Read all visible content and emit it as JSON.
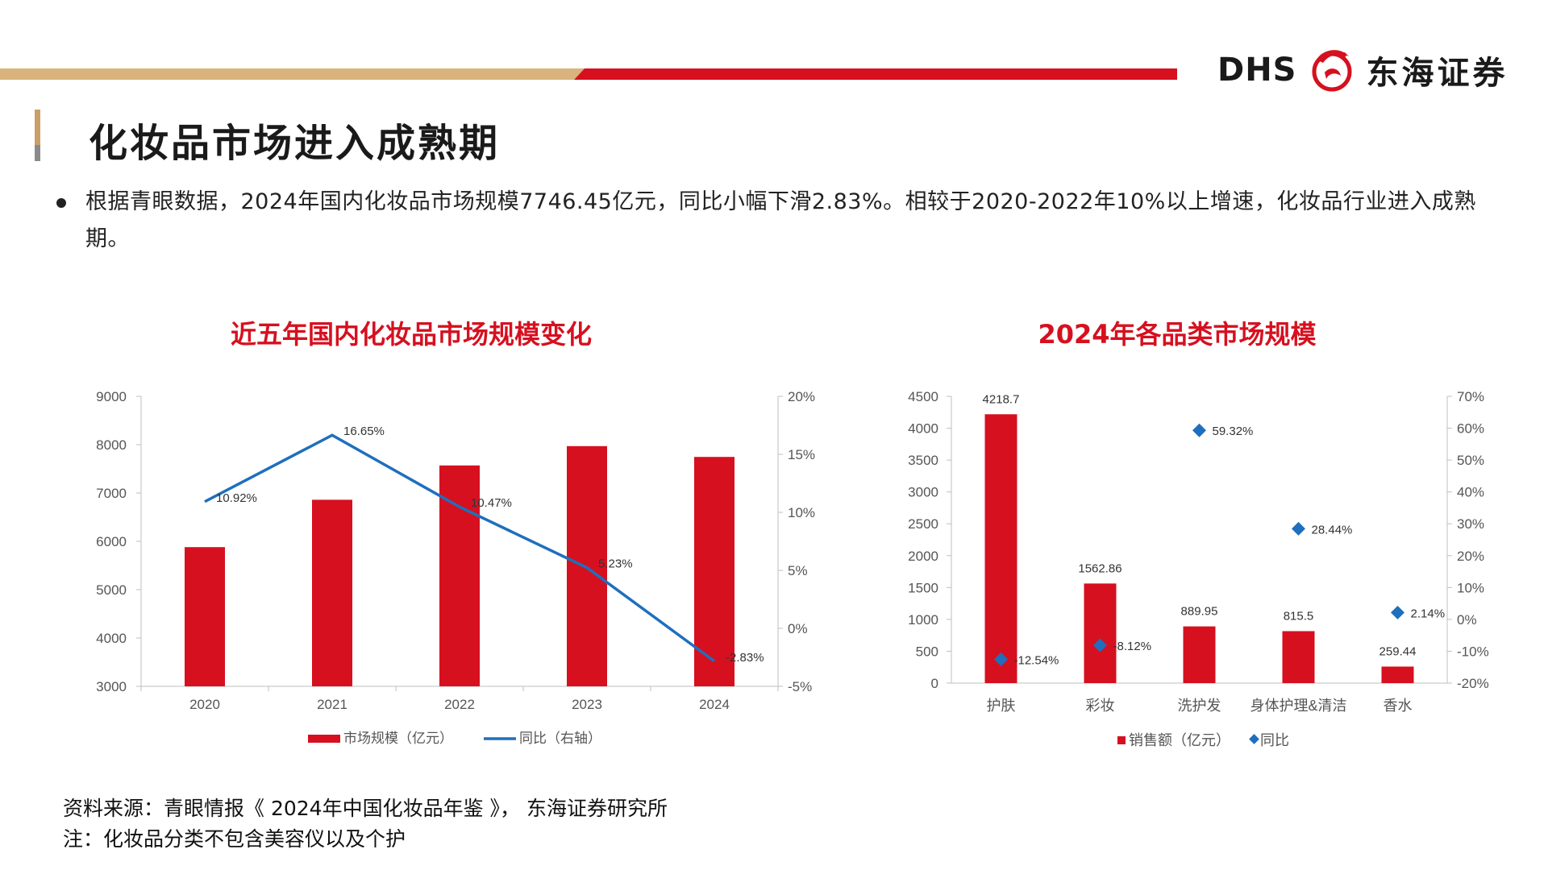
{
  "header": {
    "logo_text": "DHS",
    "company": "东海证券",
    "colors": {
      "accent_red": "#d6101f",
      "accent_gold": "#d9b27c",
      "marker_gray": "#8a8a8a"
    }
  },
  "page_title": "化妆品市场进入成熟期",
  "bullet": "根据青眼数据，2024年国内化妆品市场规模7746.45亿元，同比小幅下滑2.83%。相较于2020-2022年10%以上增速，化妆品行业进入成熟期。",
  "chart_data": [
    {
      "type": "bar",
      "title": "近五年国内化妆品市场规模变化",
      "categories": [
        "2020",
        "2021",
        "2022",
        "2023",
        "2024"
      ],
      "series": [
        {
          "name": "市场规模（亿元）",
          "type": "bar",
          "axis": "left",
          "color": "#d6101f",
          "values": [
            5880,
            6860,
            7570,
            7970,
            7746.45
          ]
        },
        {
          "name": "同比（右轴）",
          "type": "line",
          "axis": "right",
          "color": "#1f6fbd",
          "values": [
            10.92,
            16.65,
            10.47,
            5.23,
            -2.83
          ]
        }
      ],
      "line_labels": [
        "10.92%",
        "16.65%",
        "10.47%",
        "5.23%",
        "-2.83%"
      ],
      "ylim": [
        3000,
        9000
      ],
      "yticks": [
        "3000",
        "4000",
        "5000",
        "6000",
        "7000",
        "8000",
        "9000"
      ],
      "y2lim": [
        -5,
        20
      ],
      "y2ticks": [
        "-5%",
        "0%",
        "5%",
        "10%",
        "15%",
        "20%"
      ],
      "legend": [
        "市场规模（亿元）",
        "同比（右轴）"
      ],
      "legend_position": "bottom",
      "grid": false
    },
    {
      "type": "bar",
      "title": "2024年各品类市场规模",
      "categories": [
        "护肤",
        "彩妆",
        "洗护发",
        "身体护理&清洁",
        "香水"
      ],
      "series": [
        {
          "name": "销售额（亿元）",
          "type": "bar",
          "axis": "left",
          "color": "#d6101f",
          "values": [
            4218.7,
            1562.86,
            889.95,
            815.5,
            259.44
          ]
        },
        {
          "name": "同比",
          "type": "scatter",
          "axis": "right",
          "color": "#1f6fbd",
          "values": [
            -12.54,
            -8.12,
            59.32,
            28.44,
            2.14
          ]
        }
      ],
      "bar_labels": [
        "4218.7",
        "1562.86",
        "889.95",
        "815.5",
        "259.44"
      ],
      "point_labels": [
        "-12.54%",
        "-8.12%",
        "59.32%",
        "28.44%",
        "2.14%"
      ],
      "ylim": [
        0,
        4500
      ],
      "yticks": [
        "0",
        "500",
        "1000",
        "1500",
        "2000",
        "2500",
        "3000",
        "3500",
        "4000",
        "4500"
      ],
      "y2lim": [
        -20,
        70
      ],
      "y2ticks": [
        "-20%",
        "-10%",
        "0%",
        "10%",
        "20%",
        "30%",
        "40%",
        "50%",
        "60%",
        "70%"
      ],
      "legend": [
        "销售额（亿元）",
        "同比"
      ],
      "legend_position": "bottom",
      "grid": false
    }
  ],
  "source_lines": [
    "资料来源：青眼情报《 2024年中国化妆品年鉴 》， 东海证券研究所",
    "注：化妆品分类不包含美容仪以及个护"
  ]
}
